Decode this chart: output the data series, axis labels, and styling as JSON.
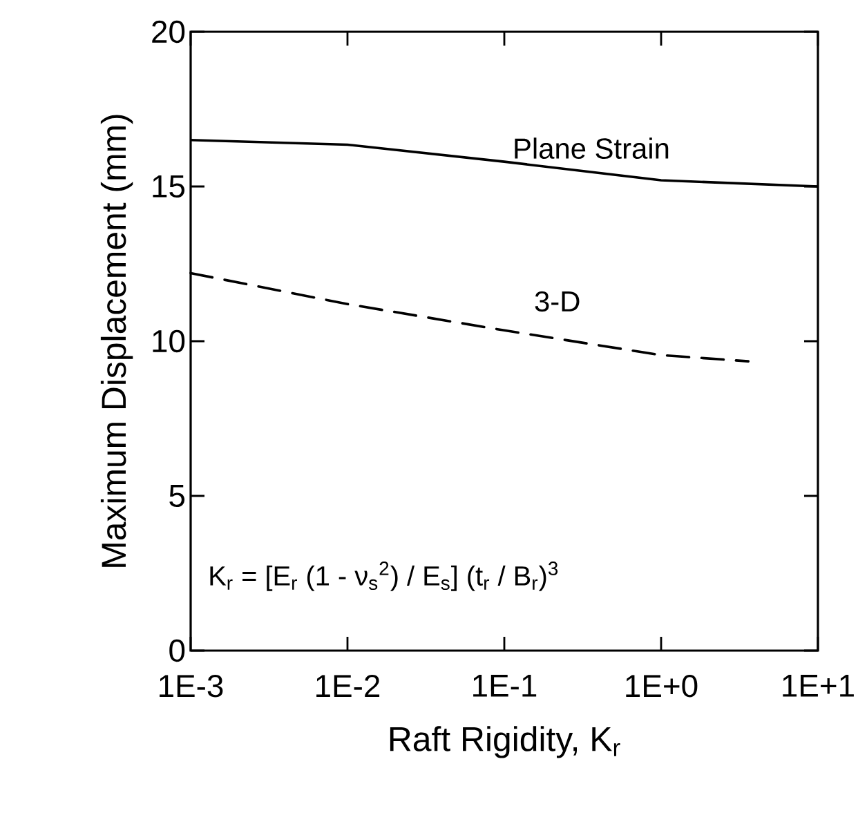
{
  "chart_data": {
    "type": "line",
    "xlabel": "Raft Rigidity, K$_{r}$",
    "ylabel": "Maximum Displacement (mm)",
    "annotations": [
      "K$_{r}$ = [E$_{r}$ (1 - ν$_{s}$$^{2}$) / E$_{s}$] (t$_{r}$ / B$_{r}$)$^{3}$"
    ],
    "log": "x",
    "xlim": [
      0.001,
      10
    ],
    "ylim": [
      0,
      20
    ],
    "xticks": [
      {
        "value": 0.001,
        "label": "1E-3"
      },
      {
        "value": 0.01,
        "label": "1E-2"
      },
      {
        "value": 0.1,
        "label": "1E-1"
      },
      {
        "value": 1,
        "label": "1E+0"
      },
      {
        "value": 10,
        "label": "1E+1"
      }
    ],
    "yticks": [
      0,
      5,
      10,
      15,
      20
    ],
    "series": [
      {
        "name": "Plane Strain",
        "color": "#000000",
        "line_style": "solid",
        "x": [
          0.001,
          0.01,
          0.1,
          1,
          10
        ],
        "values": [
          16.5,
          16.35,
          15.8,
          15.2,
          15.0
        ]
      },
      {
        "name": "3-D",
        "color": "#000000",
        "line_style": "dashed",
        "x": [
          0.001,
          0.01,
          0.1,
          1,
          3.6
        ],
        "values": [
          12.2,
          11.2,
          10.35,
          9.55,
          9.35
        ]
      }
    ]
  }
}
